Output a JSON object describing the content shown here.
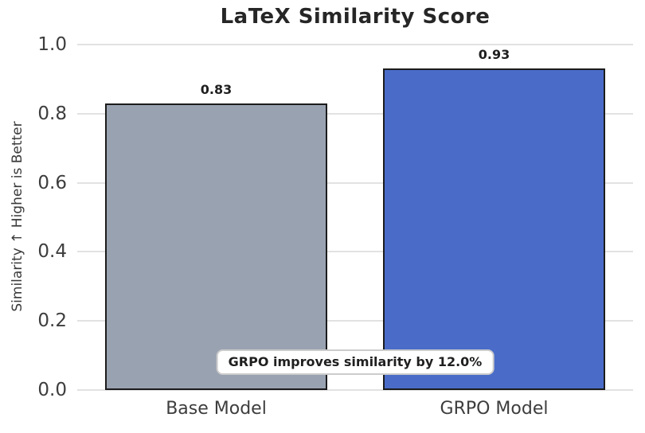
{
  "chart_data": {
    "type": "bar",
    "title": "LaTeX Similarity Score",
    "xlabel": "",
    "ylabel": "Similarity ↑ Higher is Better",
    "categories": [
      "Base Model",
      "GRPO Model"
    ],
    "values": [
      0.83,
      0.93
    ],
    "value_labels": [
      "0.83",
      "0.93"
    ],
    "bar_colors": [
      "#99a2b0",
      "#4a6cc8"
    ],
    "bar_edge_color": "#1c1c1c",
    "ylim": [
      0.0,
      1.0
    ],
    "yticks": [
      0.0,
      0.2,
      0.4,
      0.6,
      0.8,
      1.0
    ],
    "ytick_labels": [
      "0.0",
      "0.2",
      "0.4",
      "0.6",
      "0.8",
      "1.0"
    ],
    "grid": "horizontal",
    "gridline_color": "#e2e2e2",
    "background_color": "#ffffff",
    "legend": "none",
    "annotation": {
      "text": "GRPO improves similarity by 12.0%",
      "background": "#ffffff",
      "border_color": "#cccccc"
    }
  }
}
